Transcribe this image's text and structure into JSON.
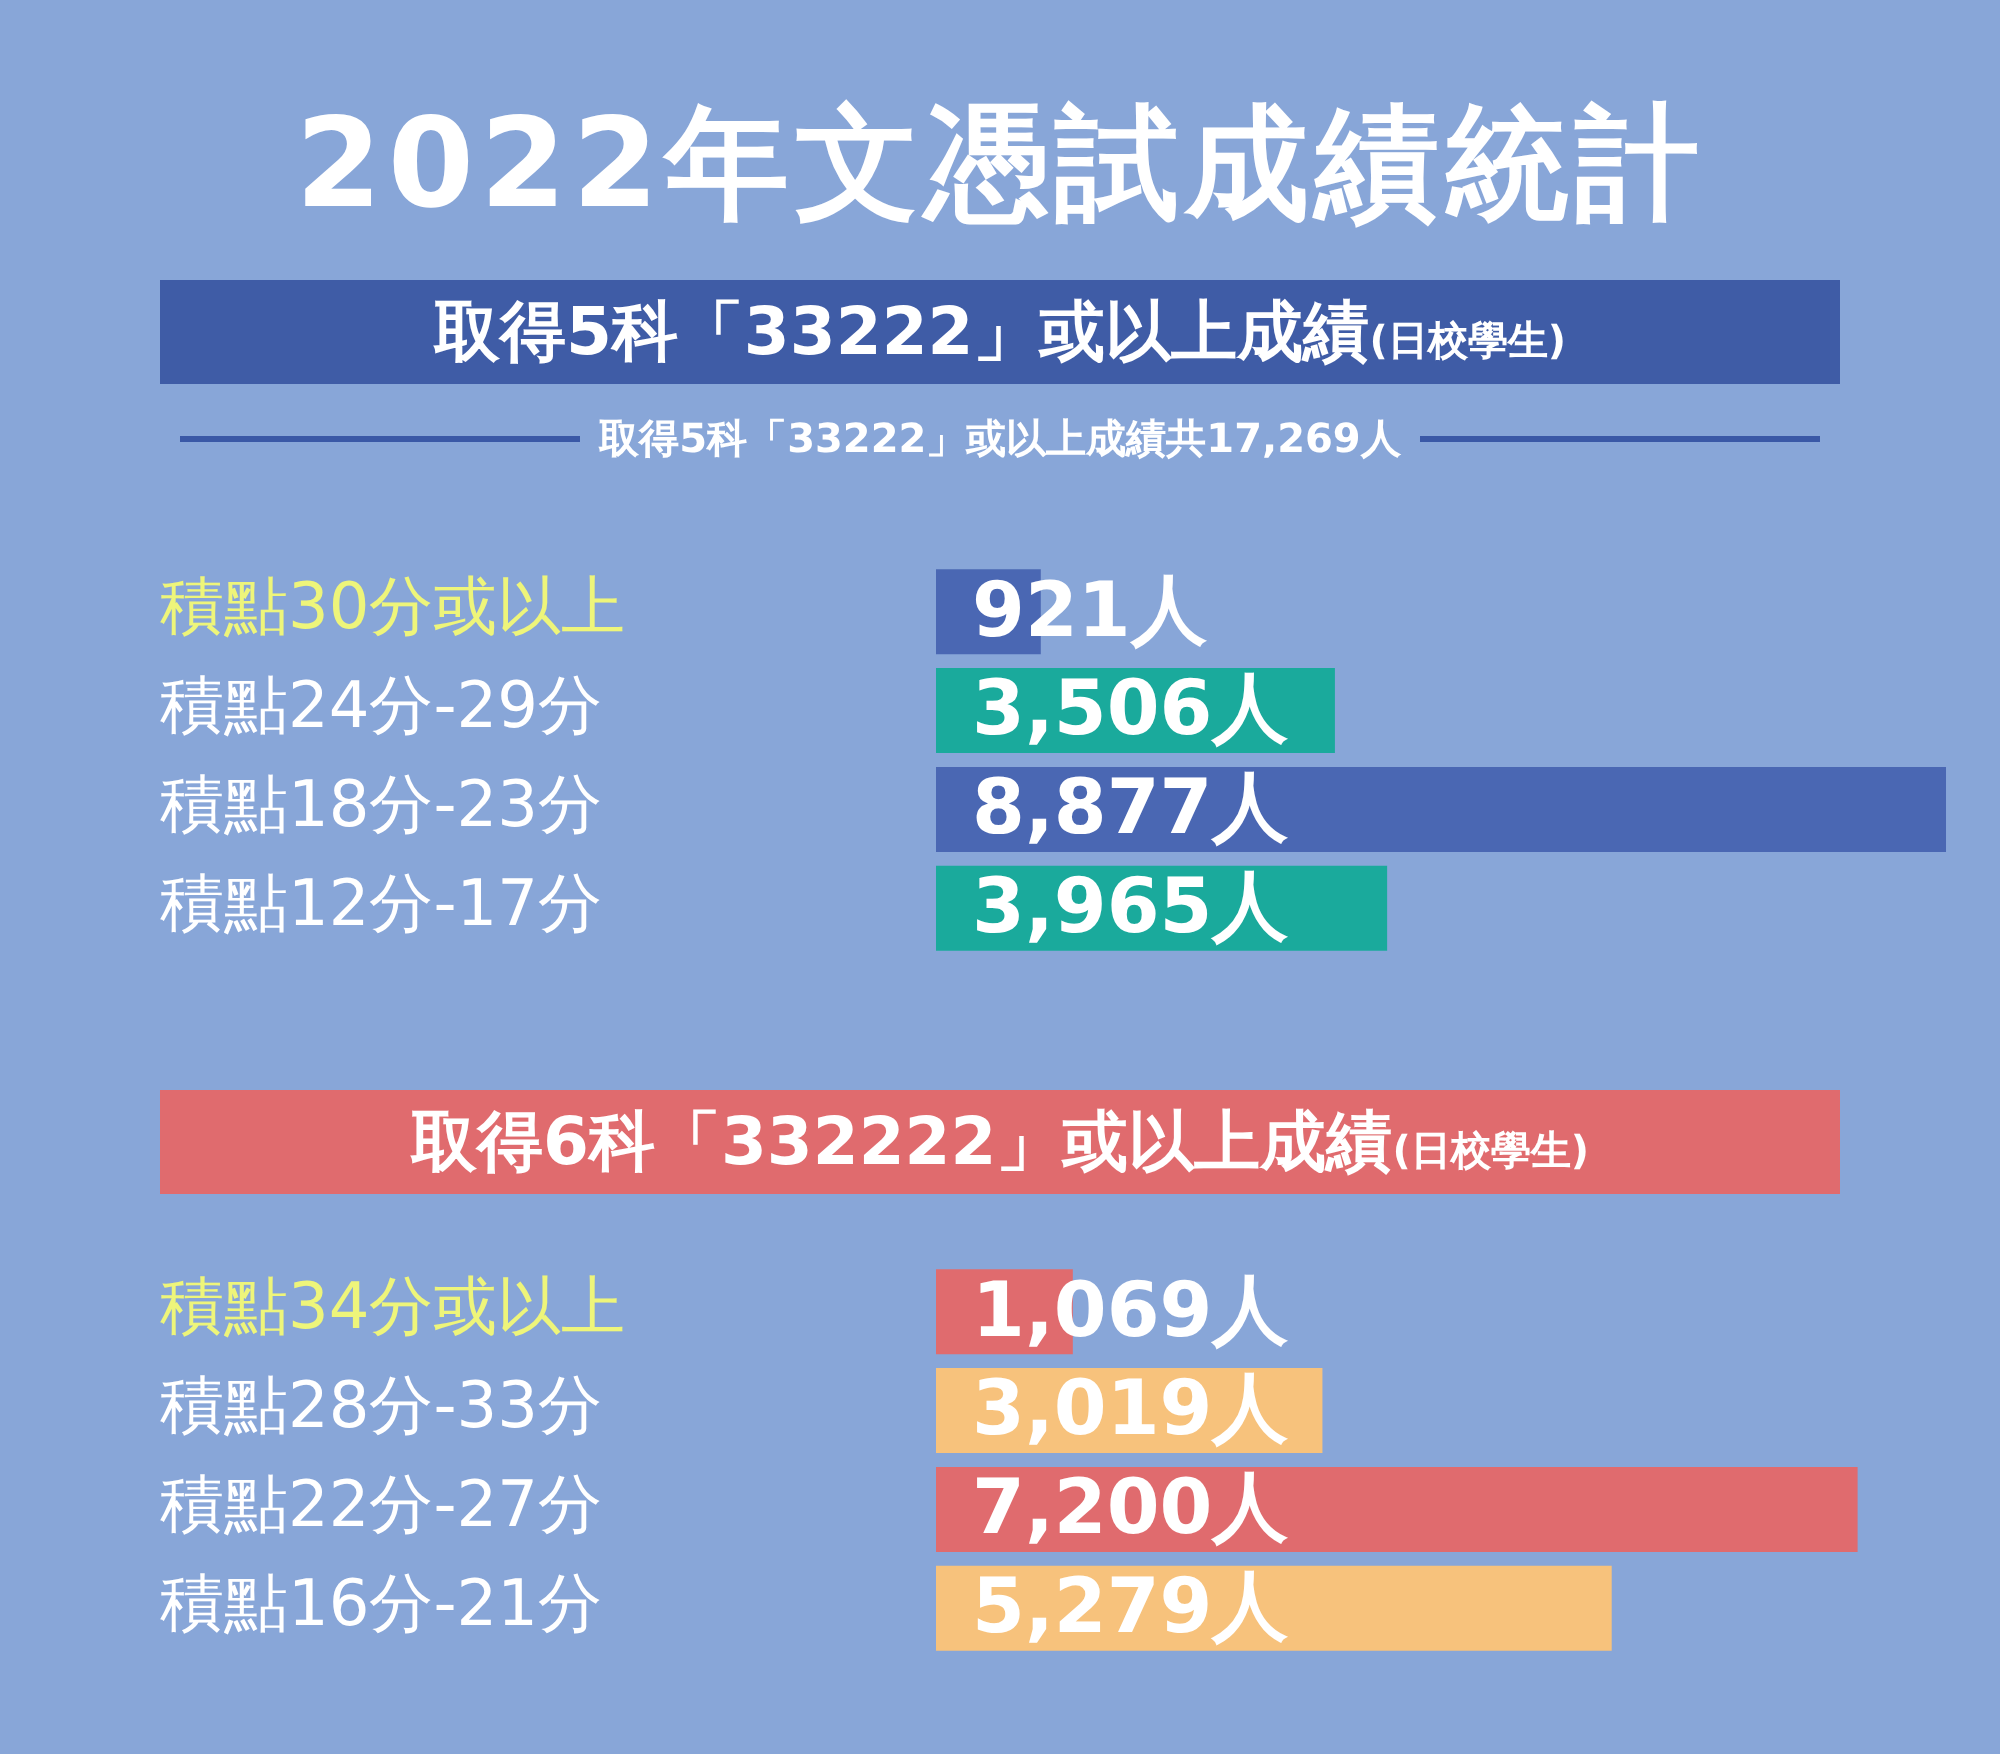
{
  "chart_data": [
    {
      "type": "bar",
      "orientation": "horizontal",
      "tick_labels": "y",
      "title": "2022年文憑試成績統計",
      "subtitle": "取得5科「33222」或以上成績(日校學生)",
      "annotations": [
        "取得5科「33222」或以上成績共17,269人"
      ],
      "categories": [
        "積點30分或以上",
        "積點24分-29分",
        "積點18分-23分",
        "積點12分-17分"
      ],
      "values": [
        921,
        3506,
        8877,
        3965
      ],
      "colors": [
        "#4a67b3",
        "#1aaa9c",
        "#4a67b3",
        "#1aaa9c"
      ],
      "value_labels": [
        "921人",
        "3,506人",
        "8,877人",
        "3,965人"
      ]
    },
    {
      "type": "bar",
      "orientation": "horizontal",
      "tick_labels": "y",
      "title": "取得6科「332222」或以上成績(日校學生)",
      "categories": [
        "積點34分或以上",
        "積點28分-33分",
        "積點22分-27分",
        "積點16分-21分"
      ],
      "values": [
        1069,
        3019,
        7200,
        5279
      ],
      "colors": [
        "#e06b6e",
        "#f7c27c",
        "#e06b6e",
        "#f7c27c"
      ],
      "value_labels": [
        "1,069人",
        "3,019人",
        "7,200人",
        "5,279人"
      ]
    }
  ]
}
